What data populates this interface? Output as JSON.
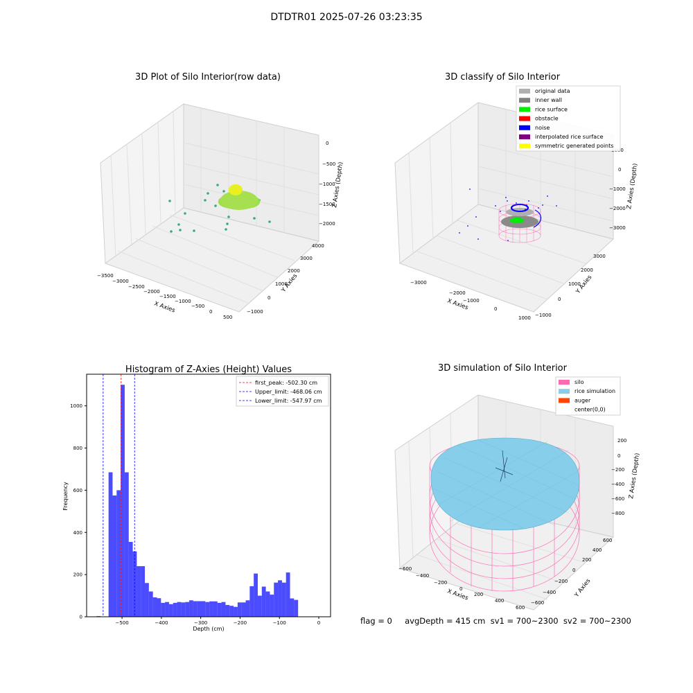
{
  "figure": {
    "suptitle": "DTDTR01 2025-07-26 03:23:35",
    "footer": "flag = 0     avgDepth = 415 cm  sv1 = 700~2300  sv2 = 700~2300"
  },
  "panels": {
    "tl": {
      "title": "3D Plot of Silo Interior(row data)",
      "xlabel": "X Axies",
      "ylabel": "Y Axies",
      "zlabel": "Z Axies (Depth)",
      "xticks": [
        "−3500",
        "−3000",
        "−2500",
        "−2000",
        "−1500",
        "−1000",
        "−500",
        "0",
        "500"
      ],
      "yticks": [
        "−1000",
        "0",
        "1000",
        "2000",
        "3000",
        "4000"
      ],
      "zticks": [
        "0",
        "−500",
        "−1000",
        "−1500",
        "−2000"
      ]
    },
    "tr": {
      "title": "3D classify of Silo Interior",
      "xlabel": "X Axies",
      "ylabel": "Y Axies",
      "zlabel": "Z Axies (Depth)",
      "xticks": [
        "−3000",
        "−2000",
        "−1000",
        "0",
        "1000"
      ],
      "yticks": [
        "−1000",
        "0",
        "1000",
        "2000",
        "3000"
      ],
      "zticks": [
        "1000",
        "0",
        "−1000",
        "−2000",
        "−3000"
      ],
      "legend": [
        {
          "label": "original data",
          "color": "#b0b0b0"
        },
        {
          "label": "inner wall",
          "color": "#808080"
        },
        {
          "label": "rice surface",
          "color": "#00ee00"
        },
        {
          "label": "obstacle",
          "color": "#ff0000"
        },
        {
          "label": "noise",
          "color": "#0000ff"
        },
        {
          "label": "interpolated rice surface",
          "color": "#800080"
        },
        {
          "label": "symmetric generated points",
          "color": "#ffff00"
        }
      ]
    },
    "br": {
      "title": "3D simulation of Silo Interior",
      "xlabel": "X Axies",
      "ylabel": "Y Axies",
      "zlabel": "Z Axies (Depth)",
      "xticks": [
        "−600",
        "−400",
        "−200",
        "0",
        "200",
        "400",
        "600"
      ],
      "yticks": [
        "−600",
        "−400",
        "−200",
        "0",
        "200",
        "400",
        "600"
      ],
      "zticks": [
        "200",
        "0",
        "−200",
        "−400",
        "−600",
        "−800"
      ],
      "legend": [
        {
          "label": "silo",
          "color": "#ff69b4"
        },
        {
          "label": "rice simulation",
          "color": "#87ceeb"
        },
        {
          "label": "auger",
          "color": "#ff4500"
        },
        {
          "label": "center(0,0)",
          "color": ""
        }
      ]
    }
  },
  "chart_data": {
    "type": "bar",
    "title": "Histogram of Z-Axies (Height) Values",
    "xlabel": "Depth (cm)",
    "ylabel": "Frequency",
    "xlim": [
      -590,
      30
    ],
    "ylim": [
      0,
      1150
    ],
    "xticks": [
      -500,
      -400,
      -300,
      -200,
      -100,
      0
    ],
    "yticks": [
      0,
      200,
      400,
      600,
      800,
      1000
    ],
    "bin_start": -565,
    "bin_width": 10.25,
    "values": [
      3,
      0,
      0,
      685,
      575,
      600,
      1100,
      685,
      355,
      310,
      240,
      240,
      160,
      120,
      92,
      88,
      66,
      70,
      60,
      66,
      70,
      68,
      70,
      78,
      74,
      74,
      74,
      70,
      73,
      73,
      66,
      70,
      56,
      52,
      47,
      68,
      68,
      78,
      145,
      205,
      100,
      143,
      120,
      105,
      162,
      173,
      162,
      210,
      87,
      80
    ],
    "color": "#0000ff",
    "lines": [
      {
        "label": "first_peak: -502.30 cm",
        "value": -502.3,
        "color": "#ff0000"
      },
      {
        "label": "Upper_limit: -468.06 cm",
        "value": -468.06,
        "color": "#0000ff"
      },
      {
        "label": "Lower_limit: -547.97 cm",
        "value": -547.97,
        "color": "#0000ff"
      }
    ]
  }
}
